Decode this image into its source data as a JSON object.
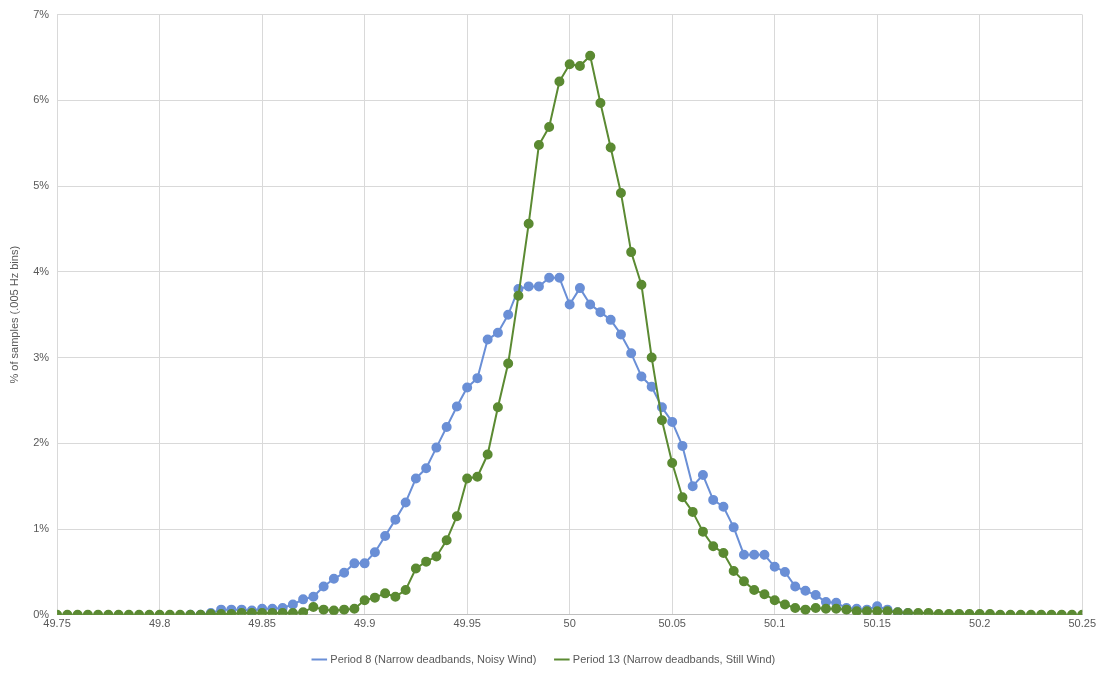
{
  "chart_data": {
    "type": "line",
    "ylabel": "% of samples (.005 Hz bins)",
    "x": [
      49.75,
      49.755,
      49.76,
      49.765,
      49.77,
      49.775,
      49.78,
      49.785,
      49.79,
      49.795,
      49.8,
      49.805,
      49.81,
      49.815,
      49.82,
      49.825,
      49.83,
      49.835,
      49.84,
      49.845,
      49.85,
      49.855,
      49.86,
      49.865,
      49.87,
      49.875,
      49.88,
      49.885,
      49.89,
      49.895,
      49.9,
      49.905,
      49.91,
      49.915,
      49.92,
      49.925,
      49.93,
      49.935,
      49.94,
      49.945,
      49.95,
      49.955,
      49.96,
      49.965,
      49.97,
      49.975,
      49.98,
      49.985,
      49.99,
      49.995,
      50,
      50.005,
      50.01,
      50.015,
      50.02,
      50.025,
      50.03,
      50.035,
      50.04,
      50.045,
      50.05,
      50.055,
      50.06,
      50.065,
      50.07,
      50.075,
      50.08,
      50.085,
      50.09,
      50.095,
      50.1,
      50.105,
      50.11,
      50.115,
      50.12,
      50.125,
      50.13,
      50.135,
      50.14,
      50.145,
      50.15,
      50.155,
      50.16,
      50.165,
      50.17,
      50.175,
      50.18,
      50.185,
      50.19,
      50.195,
      50.2,
      50.205,
      50.21,
      50.215,
      50.22,
      50.225,
      50.23,
      50.235,
      50.24,
      50.245,
      50.25
    ],
    "series": [
      {
        "name": "Period 8 (Narrow deadbands, Noisy Wind)",
        "color": "#6a8fd6",
        "values": [
          null,
          null,
          null,
          null,
          null,
          null,
          null,
          null,
          null,
          null,
          null,
          null,
          null,
          0,
          0,
          0.02,
          0.06,
          0.06,
          0.06,
          0.05,
          0.07,
          0.07,
          0.08,
          0.12,
          0.18,
          0.21,
          0.33,
          0.42,
          0.49,
          0.6,
          0.6,
          0.73,
          0.92,
          1.11,
          1.31,
          1.59,
          1.71,
          1.95,
          2.19,
          2.43,
          2.65,
          2.76,
          3.21,
          3.29,
          3.5,
          3.8,
          3.83,
          3.83,
          3.93,
          3.93,
          3.62,
          3.81,
          3.62,
          3.53,
          3.44,
          3.27,
          3.05,
          2.78,
          2.66,
          2.42,
          2.25,
          1.97,
          1.5,
          1.63,
          1.34,
          1.26,
          1.02,
          0.7,
          0.7,
          0.7,
          0.56,
          0.5,
          0.33,
          0.28,
          0.23,
          0.15,
          0.14,
          0.08,
          0.07,
          0.06,
          0.1,
          0.06,
          0.03,
          0.02,
          null,
          null,
          null,
          null,
          null,
          null,
          null,
          null,
          null,
          null,
          null,
          null,
          null,
          null,
          null,
          null,
          null
        ]
      },
      {
        "name": "Period 13 (Narrow deadbands, Still Wind)",
        "color": "#5b8a32",
        "values": [
          0,
          0,
          0,
          0,
          0,
          0,
          0,
          0,
          0,
          0,
          0,
          0,
          0,
          0,
          0,
          0.01,
          0.01,
          0.01,
          0.02,
          0.02,
          0.02,
          0.02,
          0.02,
          0.02,
          0.03,
          0.09,
          0.06,
          0.05,
          0.06,
          0.07,
          0.17,
          0.2,
          0.25,
          0.21,
          0.29,
          0.54,
          0.62,
          0.68,
          0.87,
          1.15,
          1.59,
          1.61,
          1.87,
          2.42,
          2.93,
          3.72,
          4.56,
          5.48,
          5.69,
          6.22,
          6.42,
          6.4,
          6.52,
          5.97,
          5.45,
          4.92,
          4.23,
          3.85,
          3,
          2.27,
          1.77,
          1.37,
          1.2,
          0.97,
          0.8,
          0.72,
          0.51,
          0.39,
          0.29,
          0.24,
          0.17,
          0.12,
          0.08,
          0.06,
          0.08,
          0.07,
          0.07,
          0.06,
          0.04,
          0.04,
          0.04,
          0.04,
          0.03,
          0.02,
          0.02,
          0.02,
          0.01,
          0.01,
          0.01,
          0.01,
          0.01,
          0.01,
          0,
          0,
          0,
          0,
          0,
          0,
          0,
          0,
          0
        ]
      }
    ],
    "xlim": [
      49.75,
      50.25
    ],
    "xticks": [
      49.75,
      49.8,
      49.85,
      49.9,
      49.95,
      50,
      50.05,
      50.1,
      50.15,
      50.2,
      50.25
    ],
    "ylim": [
      0,
      7
    ],
    "yticks": [
      {
        "value": 0,
        "label": "0%"
      },
      {
        "value": 1,
        "label": "1%"
      },
      {
        "value": 2,
        "label": "2%"
      },
      {
        "value": 3,
        "label": "3%"
      },
      {
        "value": 4,
        "label": "4%"
      },
      {
        "value": 5,
        "label": "5%"
      },
      {
        "value": 6,
        "label": "6%"
      },
      {
        "value": 7,
        "label": "7%"
      }
    ],
    "grid": true,
    "legend": "bottom",
    "marker": "circle",
    "line_style": "solid"
  }
}
